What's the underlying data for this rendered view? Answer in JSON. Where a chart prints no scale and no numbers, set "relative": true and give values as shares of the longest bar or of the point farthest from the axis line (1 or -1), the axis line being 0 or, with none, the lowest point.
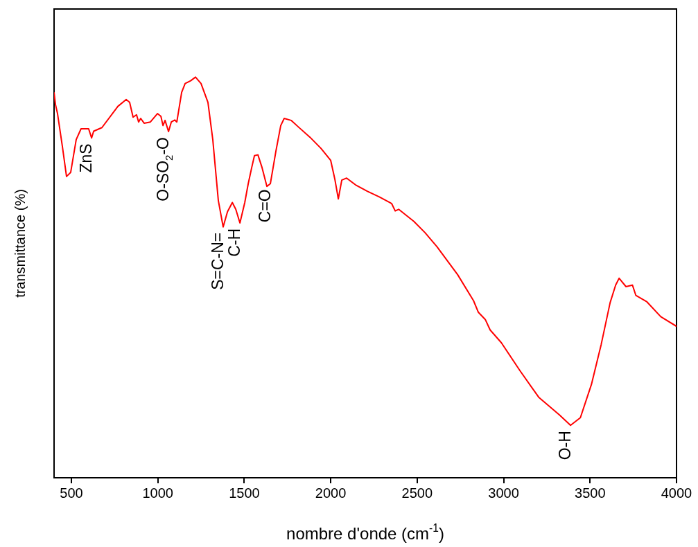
{
  "chart_data": {
    "type": "line",
    "xlabel": "nombre d'onde (cm$^{-1}$)",
    "ylabel": "transmittance (%)",
    "relative": true,
    "xlim": [
      400,
      4000
    ],
    "xticks": [
      500,
      1000,
      1500,
      2000,
      2500,
      3000,
      3500,
      4000
    ],
    "grid": false,
    "legend": false,
    "marker": "none",
    "x": [
      400,
      408,
      420,
      448,
      472,
      496,
      528,
      556,
      600,
      617,
      629,
      677,
      769,
      817,
      837,
      857,
      877,
      889,
      901,
      921,
      957,
      998,
      1018,
      1030,
      1042,
      1062,
      1078,
      1098,
      1110,
      1138,
      1158,
      1190,
      1218,
      1250,
      1290,
      1318,
      1350,
      1378,
      1403,
      1431,
      1451,
      1475,
      1503,
      1523,
      1543,
      1559,
      1579,
      1603,
      1631,
      1651,
      1683,
      1711,
      1731,
      1771,
      1812,
      1880,
      1944,
      2000,
      2024,
      2044,
      2064,
      2092,
      2144,
      2213,
      2281,
      2341,
      2353,
      2373,
      2393,
      2481,
      2545,
      2614,
      2734,
      2826,
      2854,
      2894,
      2922,
      2987,
      3095,
      3203,
      3323,
      3387,
      3444,
      3508,
      3564,
      3616,
      3648,
      3668,
      3708,
      3745,
      3765,
      3829,
      3909,
      4000
    ],
    "series": [
      {
        "color": "#ff0000",
        "values": [
          0.962,
          0.932,
          0.909,
          0.827,
          0.752,
          0.762,
          0.844,
          0.871,
          0.871,
          0.848,
          0.865,
          0.874,
          0.927,
          0.944,
          0.937,
          0.9,
          0.906,
          0.888,
          0.897,
          0.885,
          0.888,
          0.909,
          0.902,
          0.879,
          0.892,
          0.864,
          0.888,
          0.893,
          0.888,
          0.962,
          0.984,
          0.991,
          1,
          0.984,
          0.937,
          0.844,
          0.692,
          0.626,
          0.664,
          0.687,
          0.67,
          0.636,
          0.687,
          0.734,
          0.774,
          0.804,
          0.806,
          0.774,
          0.727,
          0.734,
          0.815,
          0.879,
          0.897,
          0.892,
          0.876,
          0.85,
          0.822,
          0.792,
          0.745,
          0.696,
          0.743,
          0.748,
          0.731,
          0.715,
          0.701,
          0.687,
          0.684,
          0.666,
          0.67,
          0.64,
          0.612,
          0.577,
          0.507,
          0.442,
          0.413,
          0.395,
          0.369,
          0.337,
          0.267,
          0.201,
          0.157,
          0.131,
          0.15,
          0.233,
          0.332,
          0.437,
          0.481,
          0.498,
          0.477,
          0.481,
          0.455,
          0.439,
          0.402,
          0.378
        ]
      }
    ],
    "annotations": [
      {
        "text": "ZnS",
        "x": 617,
        "y": 0.848
      },
      {
        "text": "O-SO$_{2}$-O",
        "x": 1062,
        "y": 0.864
      },
      {
        "text": "S=C-N=",
        "x": 1378,
        "y": 0.626
      },
      {
        "text": "C-H",
        "x": 1475,
        "y": 0.636
      },
      {
        "text": "C=O",
        "x": 1651,
        "y": 0.734
      },
      {
        "text": "O-H",
        "x": 3387,
        "y": 0.131
      }
    ]
  }
}
